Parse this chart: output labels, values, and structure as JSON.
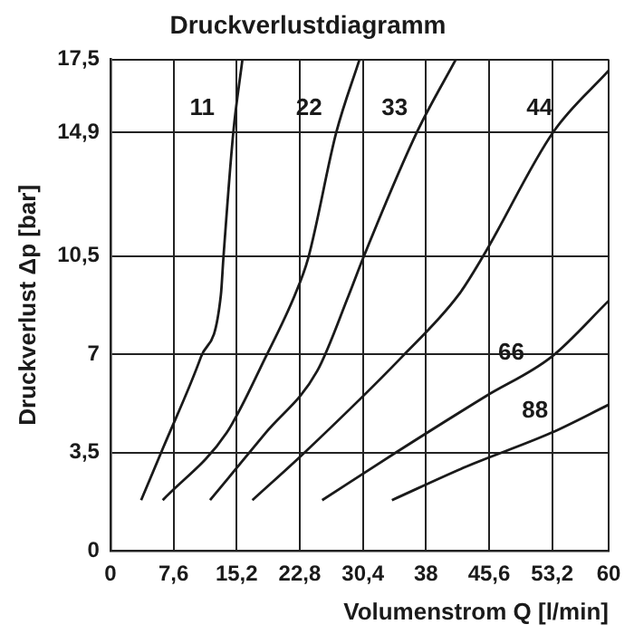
{
  "chart_data": {
    "type": "line",
    "title": "Druckverlustdiagramm",
    "xlabel": "Volumenstrom Q [l/min]",
    "ylabel": "Druckverlust Δp [bar]",
    "xlim": [
      0,
      60
    ],
    "xticks": [
      0,
      {
        "value": 7.6,
        "label": "7,6"
      },
      {
        "value": 15.2,
        "label": "15,2"
      },
      {
        "value": 22.8,
        "label": "22,8"
      },
      {
        "value": 30.4,
        "label": "30,4"
      },
      38,
      {
        "value": 45.6,
        "label": "45,6"
      },
      {
        "value": 53.2,
        "label": "53,2"
      },
      60
    ],
    "ylim": [
      0,
      17.5
    ],
    "yticks": [
      0,
      {
        "value": 3.5,
        "label": "3,5"
      },
      7,
      {
        "value": 10.5,
        "label": "10,5"
      },
      {
        "value": 14.9,
        "label": "14,9"
      },
      {
        "value": 17.5,
        "label": "17,5"
      }
    ],
    "grid": true,
    "legend": false,
    "marker": "none",
    "line_style": "solid",
    "series": [
      {
        "name": "11",
        "color": "#1a1a1a",
        "x": [
          3.7,
          6.4,
          10.9,
          13.3,
          13.6,
          14.8,
          15.9
        ],
        "values": [
          1.8,
          3.7,
          6.9,
          9.1,
          10.4,
          14.9,
          17.5
        ]
      },
      {
        "name": "22",
        "color": "#1a1a1a",
        "x": [
          6.3,
          14.0,
          18.7,
          22.2,
          23.8,
          27.2,
          30.0
        ],
        "values": [
          1.8,
          4.2,
          6.9,
          9.1,
          10.4,
          14.9,
          17.5
        ]
      },
      {
        "name": "33",
        "color": "#1a1a1a",
        "x": [
          12.0,
          18.7,
          24.9,
          28.7,
          30.4,
          36.9,
          41.6
        ],
        "values": [
          1.8,
          4.2,
          6.4,
          9.1,
          10.4,
          14.9,
          17.5
        ]
      },
      {
        "name": "44",
        "color": "#1a1a1a",
        "x": [
          17.1,
          23.4,
          35.1,
          41.9,
          44.9,
          53.3,
          60
        ],
        "values": [
          1.8,
          3.5,
          6.9,
          9.1,
          10.5,
          14.9,
          17.1
        ]
      },
      {
        "name": "66",
        "color": "#1a1a1a",
        "x": [
          25.5,
          34.4,
          45.2,
          53.1,
          60
        ],
        "values": [
          1.8,
          3.5,
          5.5,
          6.9,
          8.9
        ]
      },
      {
        "name": "88",
        "color": "#1a1a1a",
        "x": [
          33.9,
          42.9,
          53.1,
          60
        ],
        "values": [
          1.8,
          3.0,
          4.2,
          5.2
        ]
      }
    ]
  }
}
